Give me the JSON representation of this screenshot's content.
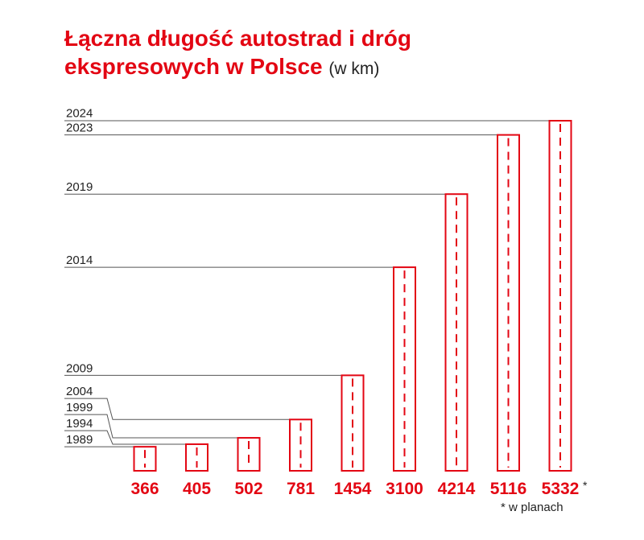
{
  "title": {
    "line1": "Łączna długość autostrad i dróg",
    "line2": "ekspresowych w Polsce",
    "unit": "(w km)"
  },
  "footnote": "* w planach",
  "chart_data": {
    "type": "bar",
    "title": "Łączna długość autostrad i dróg ekspresowych w Polsce (w km)",
    "categories": [
      "1989",
      "1994",
      "1999",
      "2004",
      "2009",
      "2014",
      "2019",
      "2023",
      "2024"
    ],
    "values": [
      366,
      405,
      502,
      781,
      1454,
      3100,
      4214,
      5116,
      5332
    ],
    "value_labels": [
      "366",
      "405",
      "502",
      "781",
      "1454",
      "3100",
      "4214",
      "5116",
      "5332"
    ],
    "annotations": [
      {
        "category": "2024",
        "marker": "*",
        "note": "w planach"
      }
    ],
    "unit": "km",
    "colors": {
      "bar": "#e30613",
      "leader": "#555555"
    }
  }
}
